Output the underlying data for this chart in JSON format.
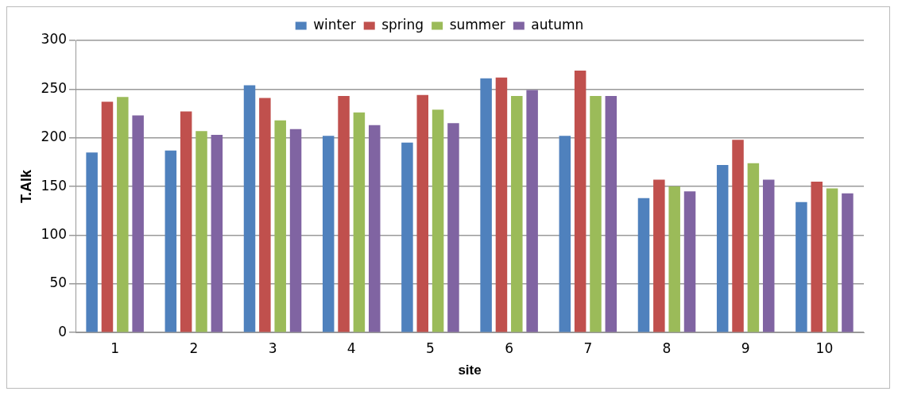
{
  "chart_data": {
    "type": "bar",
    "xlabel": "site",
    "ylabel": "T.Alk",
    "categories": [
      "1",
      "2",
      "3",
      "4",
      "5",
      "6",
      "7",
      "8",
      "9",
      "10"
    ],
    "series": [
      {
        "name": "winter",
        "color": "#4f81bd",
        "values": [
          185,
          187,
          254,
          202,
          195,
          261,
          202,
          138,
          172,
          134
        ]
      },
      {
        "name": "spring",
        "color": "#c0504d",
        "values": [
          237,
          227,
          241,
          243,
          244,
          262,
          269,
          157,
          198,
          155
        ]
      },
      {
        "name": "summer",
        "color": "#9bbb59",
        "values": [
          242,
          207,
          218,
          226,
          229,
          243,
          243,
          150,
          174,
          148
        ]
      },
      {
        "name": "autumn",
        "color": "#8064a2",
        "values": [
          223,
          203,
          209,
          213,
          215,
          249,
          243,
          145,
          157,
          143
        ]
      }
    ],
    "ylim": [
      0,
      300
    ],
    "yticks": [
      0,
      50,
      100,
      150,
      200,
      250,
      300
    ],
    "grid": "y",
    "legend": "top"
  }
}
